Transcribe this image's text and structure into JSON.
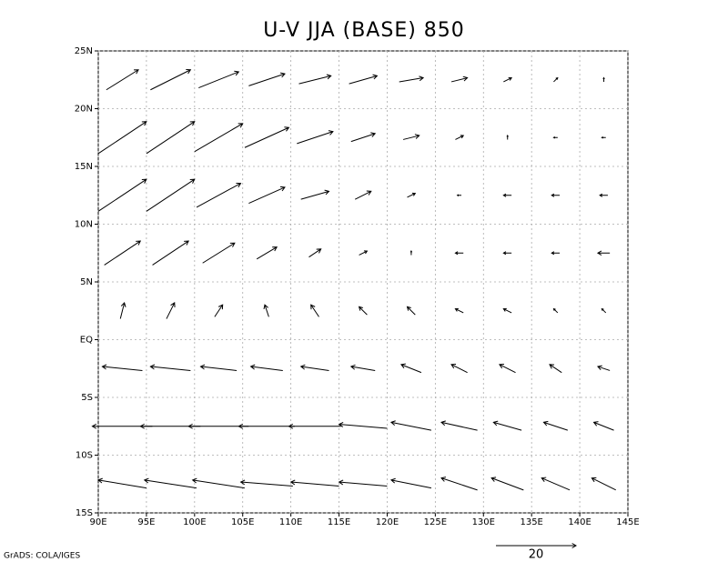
{
  "chart_data": {
    "type": "vector",
    "title": "U-V JJA (BASE) 850",
    "footer": "GrADS: COLA/IGES",
    "xlim": [
      90,
      145
    ],
    "ylim": [
      -15,
      25
    ],
    "xticks": [
      {
        "value": 90,
        "label": "90E"
      },
      {
        "value": 95,
        "label": "95E"
      },
      {
        "value": 100,
        "label": "100E"
      },
      {
        "value": 105,
        "label": "105E"
      },
      {
        "value": 110,
        "label": "110E"
      },
      {
        "value": 115,
        "label": "115E"
      },
      {
        "value": 120,
        "label": "120E"
      },
      {
        "value": 125,
        "label": "125E"
      },
      {
        "value": 130,
        "label": "130E"
      },
      {
        "value": 135,
        "label": "135E"
      },
      {
        "value": 140,
        "label": "140E"
      },
      {
        "value": 145,
        "label": "145E"
      }
    ],
    "yticks": [
      {
        "value": -15,
        "label": "15S"
      },
      {
        "value": -10,
        "label": "10S"
      },
      {
        "value": -5,
        "label": "5S"
      },
      {
        "value": 0,
        "label": "EQ"
      },
      {
        "value": 5,
        "label": "5N"
      },
      {
        "value": 10,
        "label": "10N"
      },
      {
        "value": 15,
        "label": "15N"
      },
      {
        "value": 20,
        "label": "20N"
      },
      {
        "value": 25,
        "label": "25N"
      }
    ],
    "grid": true,
    "color": "#000000",
    "reference_vector": 20,
    "lons": [
      92.5,
      97.5,
      102.5,
      107.5,
      112.5,
      117.5,
      122.5,
      127.5,
      132.5,
      137.5,
      142.5
    ],
    "lats": [
      -12.5,
      -7.5,
      -2.5,
      2.5,
      7.5,
      12.5,
      17.5,
      22.5
    ],
    "u": [
      [
        -12,
        -13,
        -13,
        -13,
        -12,
        -12,
        -10,
        -9,
        -8,
        -7,
        -6
      ],
      [
        -15,
        -15,
        -15,
        -14,
        -13,
        -12,
        -10,
        -9,
        -7,
        -6,
        -5
      ],
      [
        -10,
        -10,
        -9,
        -8,
        -7,
        -6,
        -5,
        -4,
        -4,
        -3,
        -3
      ],
      [
        1,
        2,
        2,
        -1,
        -2,
        -2,
        -2,
        -2,
        -2,
        -1,
        -1
      ],
      [
        9,
        9,
        8,
        5,
        3,
        2,
        0,
        -2,
        -2,
        -2,
        -3
      ],
      [
        12,
        12,
        11,
        9,
        7,
        4,
        2,
        -1,
        -2,
        -2,
        -2
      ],
      [
        12,
        12,
        12,
        11,
        9,
        6,
        4,
        2,
        0,
        -1,
        -1
      ],
      [
        8,
        10,
        10,
        9,
        8,
        7,
        6,
        4,
        2,
        1,
        0
      ]
    ],
    "v": [
      [
        2,
        2,
        2,
        1,
        1,
        1,
        2,
        3,
        3,
        3,
        3
      ],
      [
        0,
        0,
        0,
        0,
        0,
        1,
        2,
        2,
        2,
        2,
        2
      ],
      [
        1,
        1,
        1,
        1,
        1,
        1,
        2,
        2,
        2,
        2,
        1
      ],
      [
        4,
        4,
        3,
        3,
        3,
        2,
        2,
        1,
        1,
        1,
        1
      ],
      [
        6,
        6,
        5,
        3,
        2,
        1,
        1,
        0,
        0,
        0,
        0
      ],
      [
        8,
        8,
        6,
        4,
        2,
        2,
        1,
        0,
        0,
        0,
        0
      ],
      [
        8,
        8,
        7,
        5,
        3,
        2,
        1,
        1,
        1,
        0,
        0
      ],
      [
        5,
        5,
        4,
        3,
        2,
        2,
        1,
        1,
        1,
        1,
        1
      ]
    ]
  }
}
